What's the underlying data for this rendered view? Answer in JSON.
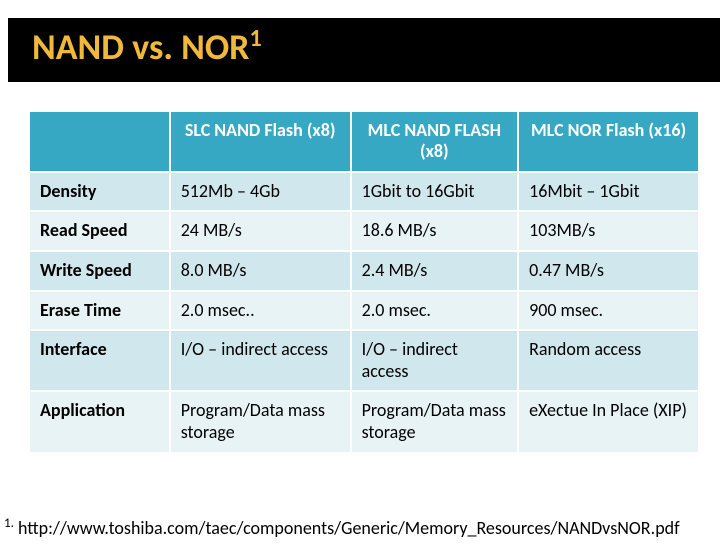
{
  "title_main": "NAND vs. NOR",
  "title_sup": "1",
  "table": {
    "header_bg": "#37a8c4",
    "header_fg": "#ffffff",
    "rowcolors": [
      "#cfe7ed",
      "#e8f3f6"
    ],
    "col_widths_pct": [
      21,
      27,
      25,
      27
    ],
    "columns": [
      "SLC NAND Flash (x8)",
      "MLC NAND FLASH (x8)",
      "MLC NOR Flash (x16)"
    ],
    "rows": [
      {
        "label": "Density",
        "cells": [
          "512Mb – 4Gb",
          "1Gbit to 16Gbit",
          "16Mbit – 1Gbit"
        ]
      },
      {
        "label": "Read Speed",
        "cells": [
          "24 MB/s",
          "18.6 MB/s",
          "103MB/s"
        ]
      },
      {
        "label": "Write Speed",
        "cells": [
          "8.0 MB/s",
          "2.4 MB/s",
          "0.47 MB/s"
        ]
      },
      {
        "label": "Erase Time",
        "cells": [
          "2.0 msec..",
          "2.0 msec.",
          "900 msec."
        ]
      },
      {
        "label": "Interface",
        "cells": [
          "I/O – indirect access",
          "I/O – indirect access",
          "Random access"
        ]
      },
      {
        "label": "Application",
        "cells": [
          "Program/Data mass storage",
          "Program/Data mass storage",
          "eXectue In Place (XIP)"
        ]
      }
    ]
  },
  "footnote_sup": "1.",
  "footnote_text": " http://www.toshiba.com/taec/components/Generic/Memory_Resources/NANDvsNOR.pdf",
  "title_color": "#f0b93a",
  "title_bg": "#000000"
}
